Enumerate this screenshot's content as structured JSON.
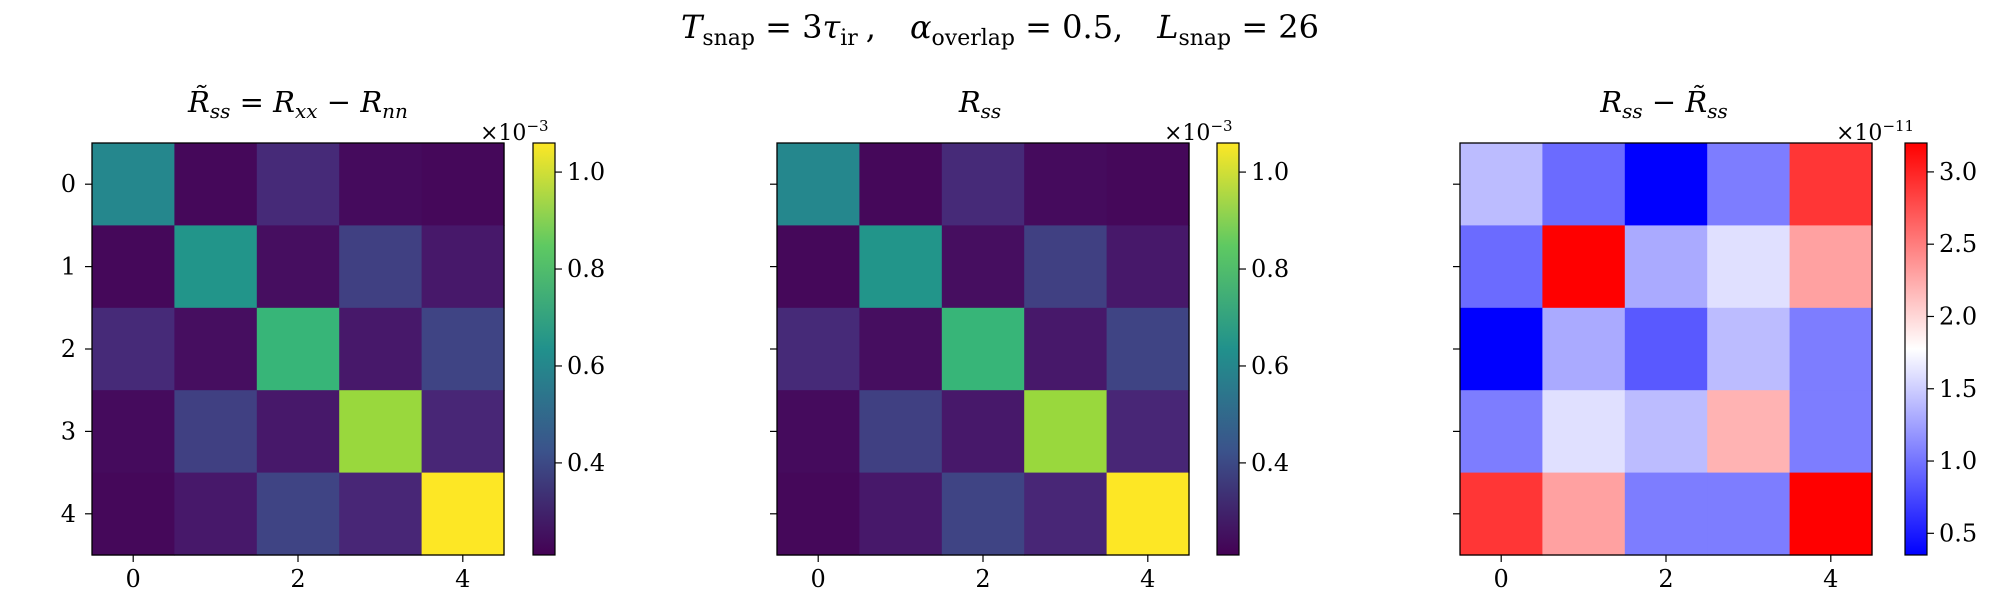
{
  "suptitle": {
    "t_sym": "T",
    "t_sub": "snap",
    "t_rhs": " = 3",
    "tau_sym": "τ",
    "tau_sub": "ir",
    "a_sym": "α",
    "a_sub": "overlap",
    "a_rhs": " = 0.5",
    "l_sym": "L",
    "l_sub": "snap",
    "l_rhs": " = 26"
  },
  "chart_data": [
    {
      "type": "heatmap",
      "title": {
        "lhs": "R̃",
        "lhs_sub": "ss",
        "eq": " = ",
        "a": "R",
        "a_sub": "xx",
        "minus": " − ",
        "b": "R",
        "b_sub": "nn"
      },
      "xticks": [
        0,
        2,
        4
      ],
      "yticks": [
        0,
        1,
        2,
        3,
        4
      ],
      "show_ytick_labels": true,
      "colormap": "viridis",
      "vmin": 0.21,
      "vmax": 1.06,
      "colorbar_ticks": [
        0.4,
        0.6,
        0.8,
        1.0
      ],
      "colorbar_tick_labels": [
        "0.4",
        "0.6",
        "0.8",
        "1.0"
      ],
      "multiplier": {
        "base": "×10",
        "exp": "−3"
      },
      "values": [
        [
          0.6,
          0.23,
          0.33,
          0.24,
          0.23
        ],
        [
          0.23,
          0.65,
          0.25,
          0.38,
          0.28
        ],
        [
          0.33,
          0.25,
          0.77,
          0.28,
          0.39
        ],
        [
          0.24,
          0.38,
          0.28,
          0.93,
          0.32
        ],
        [
          0.23,
          0.28,
          0.39,
          0.32,
          1.06
        ]
      ]
    },
    {
      "type": "heatmap",
      "title": {
        "lhs": "R",
        "lhs_sub": "ss"
      },
      "xticks": [
        0,
        2,
        4
      ],
      "yticks": [
        0,
        1,
        2,
        3,
        4
      ],
      "show_ytick_labels": false,
      "colormap": "viridis",
      "vmin": 0.21,
      "vmax": 1.06,
      "colorbar_ticks": [
        0.4,
        0.6,
        0.8,
        1.0
      ],
      "colorbar_tick_labels": [
        "0.4",
        "0.6",
        "0.8",
        "1.0"
      ],
      "multiplier": {
        "base": "×10",
        "exp": "−3"
      },
      "values": [
        [
          0.6,
          0.23,
          0.33,
          0.24,
          0.23
        ],
        [
          0.23,
          0.65,
          0.25,
          0.38,
          0.28
        ],
        [
          0.33,
          0.25,
          0.77,
          0.28,
          0.39
        ],
        [
          0.24,
          0.38,
          0.28,
          0.93,
          0.32
        ],
        [
          0.23,
          0.28,
          0.39,
          0.32,
          1.06
        ]
      ]
    },
    {
      "type": "heatmap",
      "title": {
        "lhs": "R",
        "lhs_sub": "ss",
        "minus": " − ",
        "b": "R̃",
        "b_sub": "ss"
      },
      "xticks": [
        0,
        2,
        4
      ],
      "yticks": [
        0,
        1,
        2,
        3,
        4
      ],
      "show_ytick_labels": false,
      "colormap": "bwr",
      "vmin": 0.35,
      "vmax": 3.2,
      "colorbar_ticks": [
        0.5,
        1.0,
        1.5,
        2.0,
        2.5,
        3.0
      ],
      "colorbar_tick_labels": [
        "0.5",
        "1.0",
        "1.5",
        "2.0",
        "2.5",
        "3.0"
      ],
      "multiplier": {
        "base": "×10",
        "exp": "−11"
      },
      "values": [
        [
          1.4,
          0.95,
          0.35,
          1.05,
          2.9
        ],
        [
          0.95,
          3.2,
          1.3,
          1.6,
          2.3
        ],
        [
          0.35,
          1.3,
          0.85,
          1.4,
          1.05
        ],
        [
          1.05,
          1.6,
          1.4,
          2.2,
          1.05
        ],
        [
          2.9,
          2.3,
          1.05,
          1.05,
          3.2
        ]
      ]
    }
  ]
}
